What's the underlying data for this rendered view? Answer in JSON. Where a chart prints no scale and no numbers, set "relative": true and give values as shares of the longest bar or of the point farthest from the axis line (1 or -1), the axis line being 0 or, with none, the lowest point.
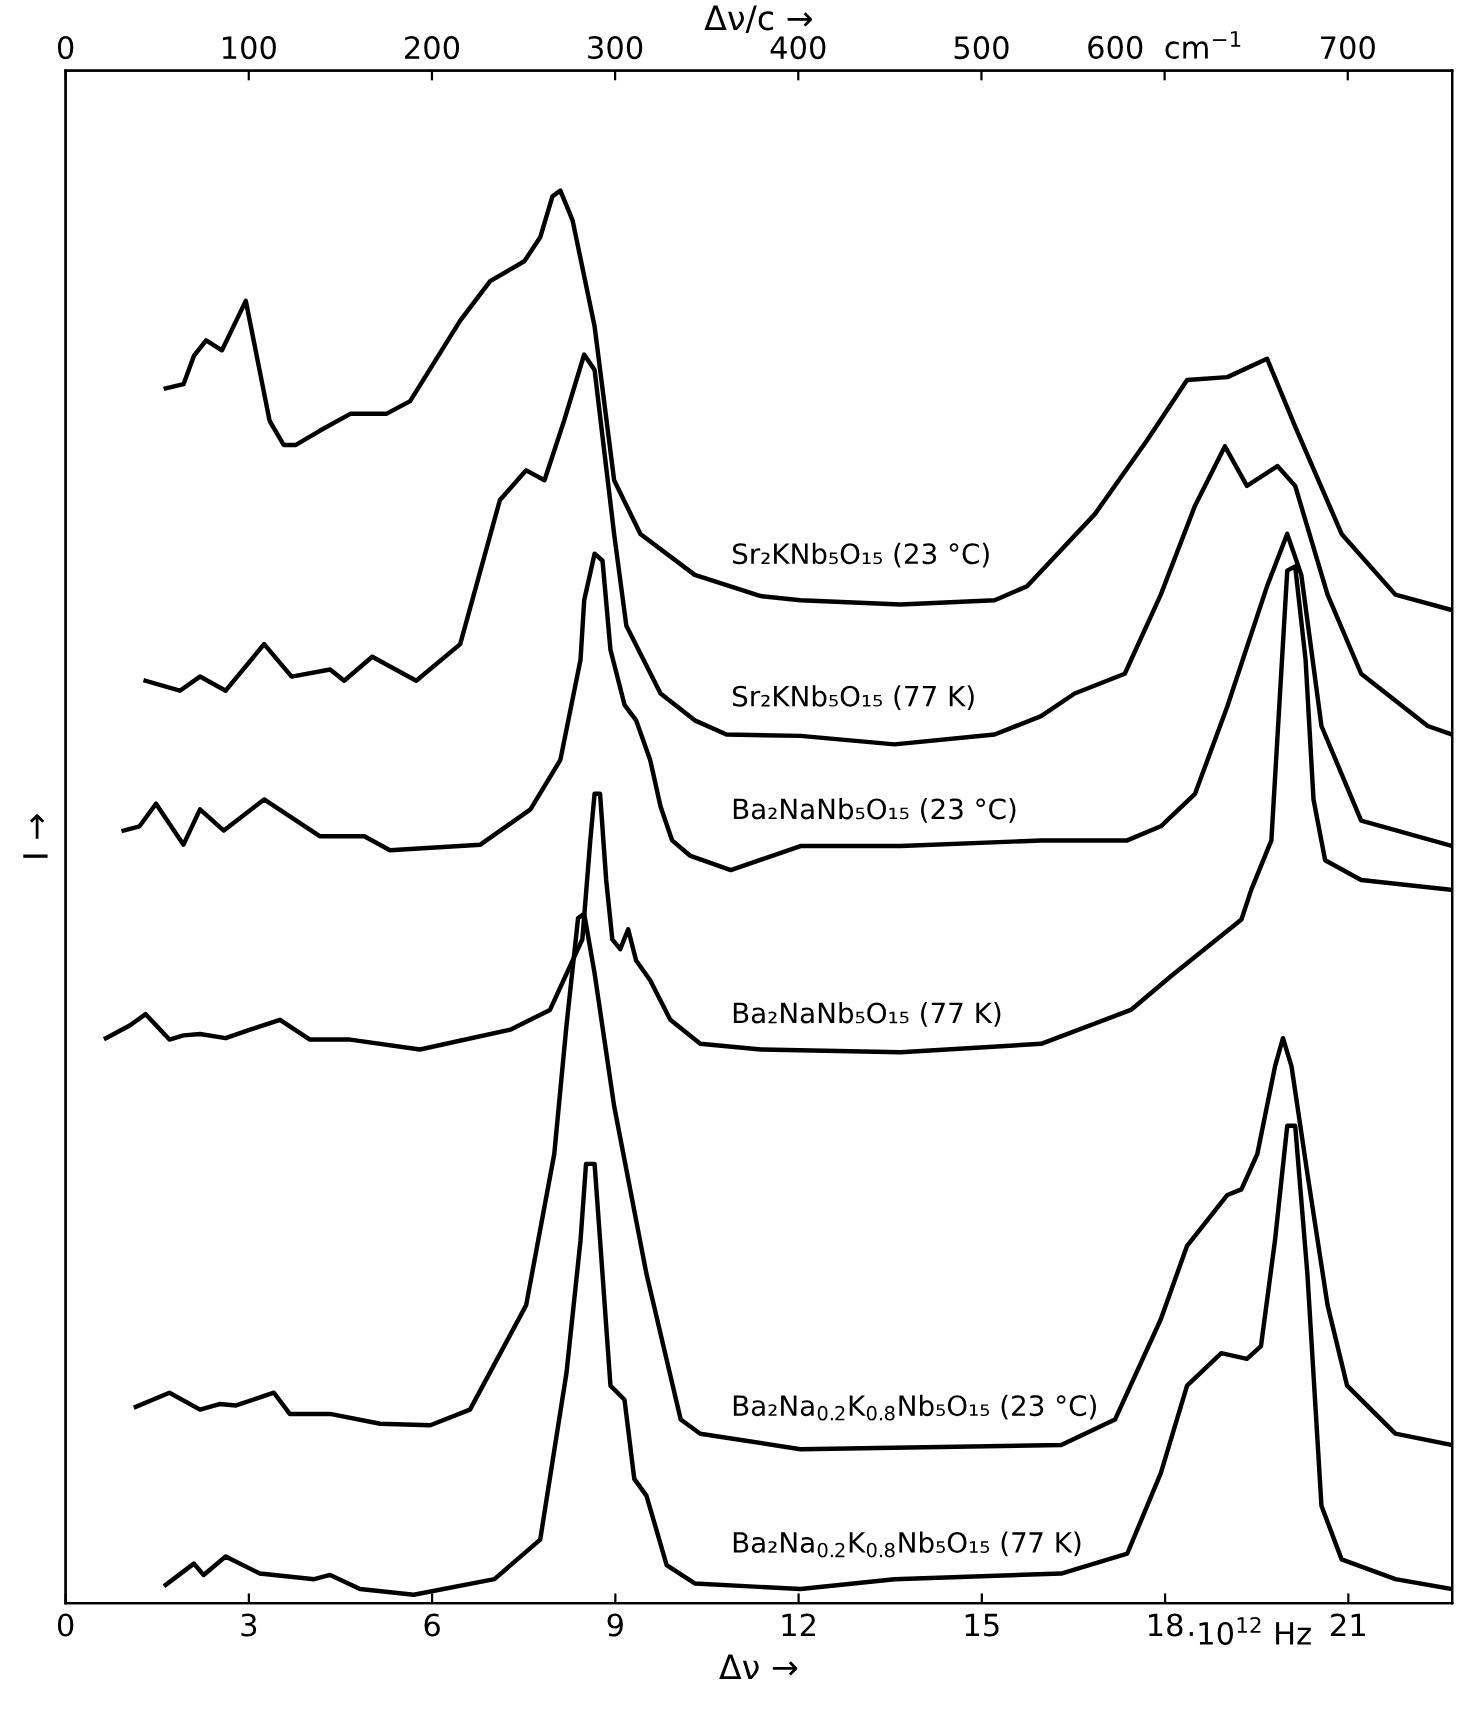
{
  "chart_data": {
    "type": "line",
    "relative": true,
    "xlabel": "Δν →",
    "x2label": "Δν/c →",
    "ylabel": "I →",
    "xlim": [
      0,
      22.7
    ],
    "xticks": [
      0,
      3,
      6,
      9,
      12,
      15,
      18,
      21
    ],
    "x2lim": [
      0,
      757
    ],
    "x2ticks": [
      0,
      100,
      200,
      300,
      400,
      500,
      {
        "value": 600,
        "label": "600  cm$^{−1}$"
      },
      700
    ],
    "annotations": [
      "·10$^{12}$ Hz"
    ],
    "grid": false,
    "marker": "none",
    "line_style": "solid",
    "series": [
      {
        "name": "Sr₂KNb₅O₁₅ (23 °C)",
        "color": "#000000",
        "x": [
          1.64,
          1.93,
          2.1,
          2.3,
          2.56,
          2.95,
          3.34,
          3.57,
          3.77,
          4.16,
          4.66,
          5.25,
          5.64,
          6.46,
          6.95,
          7.51,
          7.77,
          7.97,
          8.1,
          8.3,
          8.66,
          8.98,
          9.41,
          10.3,
          11.38,
          12.03,
          13.67,
          15.21,
          15.74,
          16.85,
          17.7,
          18.36,
          19.02,
          19.67,
          20.13,
          20.89,
          21.77,
          22.7
        ],
        "values": [
          0.86,
          0.863,
          0.883,
          0.894,
          0.887,
          0.922,
          0.837,
          0.82,
          0.82,
          0.83,
          0.842,
          0.842,
          0.851,
          0.908,
          0.936,
          0.95,
          0.967,
          0.996,
          1.0,
          0.979,
          0.904,
          0.795,
          0.757,
          0.728,
          0.713,
          0.71,
          0.707,
          0.71,
          0.72,
          0.771,
          0.823,
          0.866,
          0.868,
          0.881,
          0.833,
          0.757,
          0.714,
          0.703
        ]
      },
      {
        "name": "Sr₂KNb₅O₁₅ (77 K)",
        "color": "#000000",
        "x": [
          1.31,
          1.87,
          2.2,
          2.62,
          3.25,
          3.7,
          4.33,
          4.56,
          5.02,
          5.74,
          6.46,
          7.11,
          7.54,
          7.84,
          8.16,
          8.49,
          8.66,
          8.98,
          9.18,
          9.74,
          10.3,
          10.82,
          12.03,
          13.57,
          15.21,
          15.97,
          16.52,
          17.34,
          17.93,
          18.49,
          18.98,
          19.34,
          19.84,
          20.13,
          20.66,
          21.21,
          22.3,
          22.7
        ],
        "values": [
          0.653,
          0.646,
          0.656,
          0.646,
          0.679,
          0.656,
          0.661,
          0.653,
          0.67,
          0.653,
          0.679,
          0.781,
          0.802,
          0.795,
          0.837,
          0.884,
          0.873,
          0.757,
          0.692,
          0.644,
          0.625,
          0.615,
          0.614,
          0.608,
          0.615,
          0.628,
          0.644,
          0.658,
          0.714,
          0.777,
          0.819,
          0.791,
          0.805,
          0.791,
          0.714,
          0.658,
          0.621,
          0.615
        ]
      },
      {
        "name": "Ba₂NaNb₅O₁₅ (23 °C)",
        "color": "#000000",
        "x": [
          0.95,
          1.21,
          1.48,
          1.93,
          2.2,
          2.59,
          3.25,
          4.16,
          4.89,
          5.31,
          6.79,
          7.61,
          8.1,
          8.43,
          8.49,
          8.66,
          8.79,
          8.92,
          9.15,
          9.34,
          9.57,
          9.74,
          9.93,
          10.23,
          10.89,
          12.03,
          13.67,
          15.97,
          17.38,
          17.93,
          18.49,
          19.02,
          19.67,
          20.0,
          20.23,
          20.56,
          21.21,
          22.7
        ],
        "values": [
          0.547,
          0.55,
          0.566,
          0.537,
          0.562,
          0.547,
          0.569,
          0.543,
          0.543,
          0.533,
          0.537,
          0.562,
          0.597,
          0.668,
          0.71,
          0.743,
          0.738,
          0.675,
          0.636,
          0.625,
          0.597,
          0.564,
          0.54,
          0.529,
          0.519,
          0.536,
          0.536,
          0.54,
          0.54,
          0.55,
          0.573,
          0.635,
          0.72,
          0.757,
          0.728,
          0.621,
          0.554,
          0.536
        ]
      },
      {
        "name": "Ba₂NaNb₅O₁₅ (77 K)",
        "color": "#000000",
        "x": [
          0.66,
          1.05,
          1.31,
          1.7,
          1.93,
          2.2,
          2.62,
          3.02,
          3.51,
          4.0,
          4.66,
          5.8,
          7.28,
          7.93,
          8.46,
          8.59,
          8.66,
          8.75,
          8.85,
          8.95,
          9.08,
          9.21,
          9.34,
          9.57,
          9.9,
          10.39,
          11.38,
          13.67,
          15.97,
          17.44,
          18.1,
          19.25,
          19.41,
          19.74,
          20.0,
          20.13,
          20.3,
          20.43,
          20.62,
          21.21,
          22.7
        ],
        "values": [
          0.4,
          0.409,
          0.417,
          0.399,
          0.402,
          0.403,
          0.4,
          0.406,
          0.413,
          0.399,
          0.399,
          0.392,
          0.406,
          0.42,
          0.47,
          0.54,
          0.573,
          0.573,
          0.512,
          0.47,
          0.463,
          0.477,
          0.455,
          0.441,
          0.413,
          0.396,
          0.392,
          0.39,
          0.396,
          0.42,
          0.444,
          0.484,
          0.505,
          0.54,
          0.731,
          0.734,
          0.668,
          0.569,
          0.526,
          0.512,
          0.505
        ]
      },
      {
        "name": "Ba₂Na$_{0.2}$K$_{0.8}$Nb₅O₁₅ (23 °C)",
        "color": "#000000",
        "x": [
          1.15,
          1.7,
          2.2,
          2.52,
          2.79,
          3.41,
          3.67,
          4.33,
          5.15,
          5.97,
          6.62,
          7.54,
          8.0,
          8.2,
          8.39,
          8.49,
          8.66,
          8.98,
          9.51,
          10.07,
          10.39,
          12.03,
          16.3,
          17.18,
          17.93,
          18.36,
          19.02,
          19.25,
          19.51,
          19.8,
          19.93,
          20.07,
          20.33,
          20.66,
          20.98,
          21.77,
          22.7
        ],
        "values": [
          0.139,
          0.149,
          0.137,
          0.141,
          0.14,
          0.149,
          0.134,
          0.134,
          0.127,
          0.126,
          0.137,
          0.211,
          0.318,
          0.409,
          0.485,
          0.488,
          0.446,
          0.352,
          0.233,
          0.13,
          0.12,
          0.109,
          0.112,
          0.13,
          0.201,
          0.253,
          0.289,
          0.293,
          0.318,
          0.38,
          0.4,
          0.38,
          0.304,
          0.211,
          0.154,
          0.12,
          0.112
        ]
      },
      {
        "name": "Ba₂Na$_{0.2}$K$_{0.8}$Nb₅O₁₅ (77 K)",
        "color": "#000000",
        "x": [
          1.64,
          2.1,
          2.26,
          2.62,
          3.18,
          4.07,
          4.33,
          4.82,
          5.7,
          7.02,
          7.77,
          8.2,
          8.43,
          8.52,
          8.66,
          8.75,
          8.92,
          9.15,
          9.31,
          9.51,
          9.84,
          10.3,
          12.03,
          13.57,
          16.3,
          17.38,
          17.93,
          18.36,
          18.92,
          19.34,
          19.57,
          19.8,
          20.0,
          20.13,
          20.33,
          20.56,
          20.89,
          21.77,
          22.7
        ],
        "values": [
          0.013,
          0.028,
          0.02,
          0.033,
          0.021,
          0.017,
          0.02,
          0.01,
          0.006,
          0.017,
          0.045,
          0.163,
          0.257,
          0.311,
          0.311,
          0.257,
          0.154,
          0.144,
          0.088,
          0.076,
          0.027,
          0.014,
          0.01,
          0.017,
          0.021,
          0.035,
          0.092,
          0.154,
          0.177,
          0.173,
          0.182,
          0.257,
          0.338,
          0.338,
          0.233,
          0.069,
          0.031,
          0.017,
          0.01
        ]
      }
    ]
  }
}
